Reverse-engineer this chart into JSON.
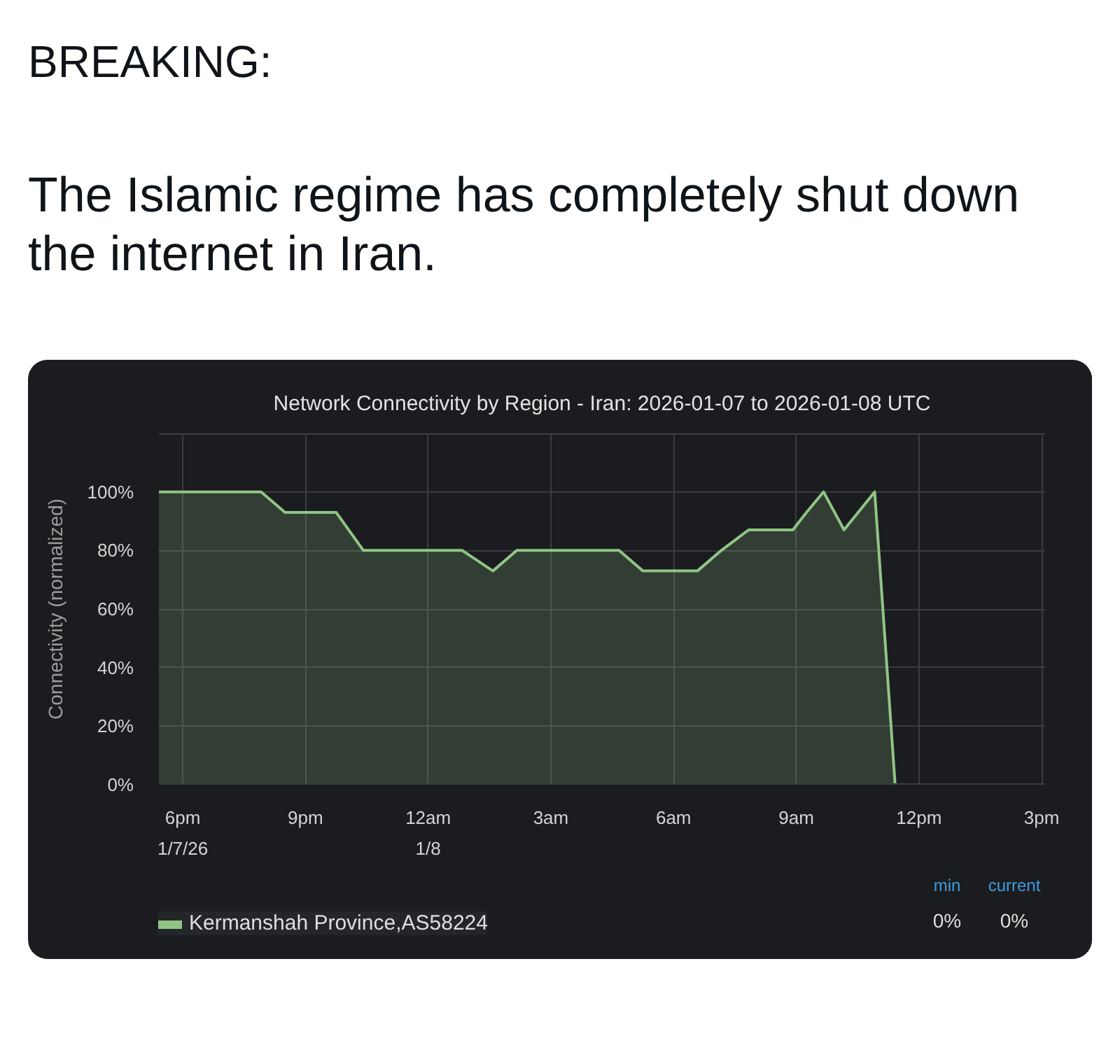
{
  "chart_data": {
    "type": "area",
    "title": "Network Connectivity by Region - Iran: 2026-01-07 to 2026-01-08 UTC",
    "ylabel": "Connectivity (normalized)",
    "x": [
      "2026-01-07T17:25",
      "2026-01-07T19:55",
      "2026-01-07T20:30",
      "2026-01-07T21:45",
      "2026-01-07T22:25",
      "2026-01-08T00:50",
      "2026-01-08T01:35",
      "2026-01-08T02:10",
      "2026-01-08T04:40",
      "2026-01-08T05:15",
      "2026-01-08T06:35",
      "2026-01-08T07:10",
      "2026-01-08T07:50",
      "2026-01-08T08:55",
      "2026-01-08T09:15",
      "2026-01-08T09:40",
      "2026-01-08T10:10",
      "2026-01-08T10:55",
      "2026-01-08T11:25",
      "2026-01-08T15:05"
    ],
    "series": [
      {
        "name": "Kermanshah Province,AS58224",
        "color": "#8fc486",
        "values": [
          100,
          100,
          93,
          93,
          80,
          80,
          73,
          80,
          80,
          73,
          73,
          80,
          87,
          87,
          93,
          100,
          87,
          100,
          0,
          0
        ]
      }
    ],
    "xlim": [
      "2026-01-07T17:25",
      "2026-01-08T15:05"
    ],
    "xticks": [
      {
        "value": "2026-01-07T18:00",
        "label": "6pm\n1/7/26"
      },
      {
        "value": "2026-01-07T21:00",
        "label": "9pm"
      },
      {
        "value": "2026-01-08T00:00",
        "label": "12am\n1/8"
      },
      {
        "value": "2026-01-08T03:00",
        "label": "3am"
      },
      {
        "value": "2026-01-08T06:00",
        "label": "6am"
      },
      {
        "value": "2026-01-08T09:00",
        "label": "9am"
      },
      {
        "value": "2026-01-08T12:00",
        "label": "12pm"
      },
      {
        "value": "2026-01-08T15:00",
        "label": "3pm"
      }
    ],
    "ylim": [
      0,
      120
    ],
    "yticks": [
      {
        "value": 0,
        "label": "0%"
      },
      {
        "value": 20,
        "label": "20%"
      },
      {
        "value": 40,
        "label": "40%"
      },
      {
        "value": 60,
        "label": "60%"
      },
      {
        "value": 80,
        "label": "80%"
      },
      {
        "value": 100,
        "label": "100%"
      },
      {
        "value": 120,
        "label": null
      }
    ],
    "grid": true,
    "legend": "bottom",
    "annotations": [
      "BREAKING:",
      "The Islamic regime has completely shut down the internet in Iran.",
      "min",
      "current",
      "0%",
      "0%"
    ]
  }
}
